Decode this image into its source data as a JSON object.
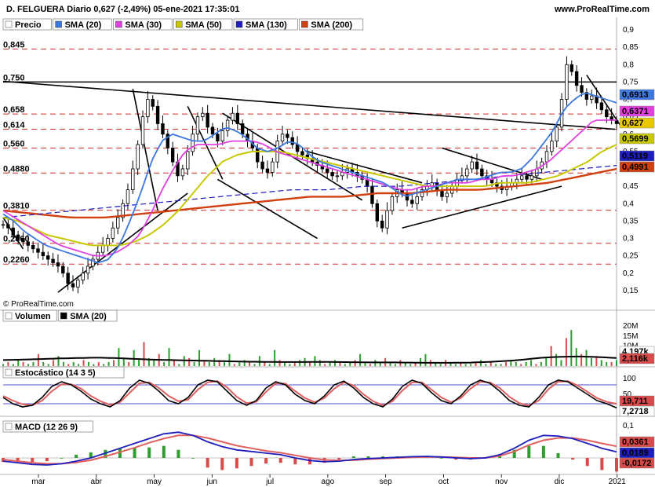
{
  "header": {
    "title": "D. FELGUERA Diario 0,627 (-2,49%) 05-ene-2021 17:35:01",
    "site": "www.ProRealTime.com",
    "copyright": "© ProRealTime.com"
  },
  "colors": {
    "up": "#2e9e2e",
    "down": "#d94a4a",
    "sma20": "#3c78e0",
    "sma30": "#e040e0",
    "sma50": "#c8c800",
    "sma130": "#1e1ebe",
    "sma200": "#d04010",
    "grid_red": "#d03030"
  },
  "chart_data": [
    {
      "type": "candlestick",
      "panel": "price",
      "legend": [
        {
          "label": "Precio",
          "color": "#ffffff"
        },
        {
          "label": "SMA (20)",
          "color": "#3c78e0"
        },
        {
          "label": "SMA (30)",
          "color": "#e040e0"
        },
        {
          "label": "SMA (50)",
          "color": "#c8c800"
        },
        {
          "label": "SMA (130)",
          "color": "#1e1ebe"
        },
        {
          "label": "SMA (200)",
          "color": "#d04010"
        }
      ],
      "ylim": [
        0.1,
        0.9
      ],
      "y_ticks": [
        "0,9",
        "0,85",
        "0,8",
        "0,75",
        "0,7",
        "0,65",
        "0,6",
        "0,55",
        "0,5",
        "0,45",
        "0,4",
        "0,35",
        "0,3",
        "0,25",
        "0,2",
        "0,15"
      ],
      "x_months": [
        "mar",
        "abr",
        "may",
        "jun",
        "jul",
        "ago",
        "sep",
        "oct",
        "nov",
        "dic",
        "2021"
      ],
      "levels": [
        {
          "label": "0,845",
          "value": 0.845
        },
        {
          "label": "0,750",
          "value": 0.75
        },
        {
          "label": "0,658",
          "value": 0.658
        },
        {
          "label": "0,614",
          "value": 0.614
        },
        {
          "label": "0,560",
          "value": 0.56
        },
        {
          "label": "0,4880",
          "value": 0.488
        },
        {
          "label": "0,3810",
          "value": 0.381
        },
        {
          "label": "0,2860",
          "value": 0.286
        },
        {
          "label": "0,2260",
          "value": 0.226
        }
      ],
      "last_values": [
        {
          "label": "0,6913",
          "value": 0.6913,
          "color": "#3c78e0"
        },
        {
          "label": "0,6371",
          "value": 0.6371,
          "color": "#e040e0"
        },
        {
          "label": "0,627",
          "value": 0.627,
          "color": "#e8c800"
        },
        {
          "label": "0,5699",
          "value": 0.5699,
          "color": "#c8c800"
        },
        {
          "label": "0,5119",
          "value": 0.5119,
          "color": "#1e1ebe"
        },
        {
          "label": "0,4991",
          "value": 0.4991,
          "color": "#d04010"
        }
      ],
      "close_series": [
        0.34,
        0.33,
        0.31,
        0.3,
        0.29,
        0.28,
        0.27,
        0.26,
        0.25,
        0.24,
        0.23,
        0.22,
        0.2,
        0.17,
        0.16,
        0.18,
        0.2,
        0.22,
        0.24,
        0.26,
        0.28,
        0.3,
        0.33,
        0.36,
        0.4,
        0.44,
        0.5,
        0.57,
        0.65,
        0.7,
        0.68,
        0.63,
        0.6,
        0.56,
        0.52,
        0.48,
        0.5,
        0.55,
        0.6,
        0.65,
        0.66,
        0.62,
        0.6,
        0.58,
        0.61,
        0.64,
        0.66,
        0.63,
        0.6,
        0.58,
        0.56,
        0.52,
        0.5,
        0.49,
        0.52,
        0.58,
        0.6,
        0.59,
        0.57,
        0.55,
        0.54,
        0.53,
        0.52,
        0.51,
        0.5,
        0.49,
        0.48,
        0.48,
        0.49,
        0.5,
        0.49,
        0.48,
        0.47,
        0.45,
        0.4,
        0.35,
        0.33,
        0.38,
        0.42,
        0.44,
        0.43,
        0.41,
        0.4,
        0.42,
        0.44,
        0.45,
        0.46,
        0.44,
        0.42,
        0.43,
        0.45,
        0.47,
        0.48,
        0.5,
        0.52,
        0.5,
        0.48,
        0.47,
        0.46,
        0.45,
        0.44,
        0.45,
        0.46,
        0.47,
        0.48,
        0.47,
        0.48,
        0.5,
        0.52,
        0.55,
        0.58,
        0.62,
        0.7,
        0.8,
        0.78,
        0.74,
        0.72,
        0.7,
        0.71,
        0.69,
        0.67,
        0.65,
        0.64,
        0.63
      ],
      "sma20_series": [
        0.37,
        0.35,
        0.32,
        0.3,
        0.28,
        0.27,
        0.26,
        0.25,
        0.24,
        0.23,
        0.24,
        0.28,
        0.35,
        0.43,
        0.52,
        0.58,
        0.6,
        0.59,
        0.58,
        0.58,
        0.6,
        0.62,
        0.61,
        0.59,
        0.56,
        0.55,
        0.56,
        0.58,
        0.57,
        0.54,
        0.52,
        0.51,
        0.5,
        0.49,
        0.48,
        0.47,
        0.46,
        0.44,
        0.42,
        0.43,
        0.44,
        0.45,
        0.46,
        0.47,
        0.47,
        0.47,
        0.48,
        0.49,
        0.49,
        0.5,
        0.53,
        0.57,
        0.61,
        0.67,
        0.7,
        0.72,
        0.71,
        0.7,
        0.69
      ],
      "sma30_series": [
        0.38,
        0.36,
        0.34,
        0.32,
        0.3,
        0.28,
        0.27,
        0.26,
        0.25,
        0.25,
        0.26,
        0.28,
        0.31,
        0.37,
        0.44,
        0.5,
        0.55,
        0.57,
        0.57,
        0.57,
        0.58,
        0.58,
        0.58,
        0.57,
        0.55,
        0.54,
        0.53,
        0.52,
        0.51,
        0.5,
        0.49,
        0.48,
        0.47,
        0.46,
        0.45,
        0.44,
        0.44,
        0.45,
        0.45,
        0.46,
        0.46,
        0.46,
        0.47,
        0.47,
        0.48,
        0.48,
        0.49,
        0.5,
        0.52,
        0.55,
        0.58,
        0.61,
        0.64,
        0.64,
        0.64
      ],
      "sma50_series": [
        0.36,
        0.35,
        0.33,
        0.31,
        0.3,
        0.29,
        0.28,
        0.28,
        0.28,
        0.29,
        0.31,
        0.34,
        0.38,
        0.43,
        0.48,
        0.52,
        0.54,
        0.55,
        0.55,
        0.55,
        0.54,
        0.53,
        0.52,
        0.51,
        0.5,
        0.49,
        0.48,
        0.47,
        0.46,
        0.45,
        0.45,
        0.45,
        0.45,
        0.45,
        0.46,
        0.46,
        0.46,
        0.47,
        0.48,
        0.5,
        0.52,
        0.55,
        0.57
      ],
      "sma130_series": [
        0.36,
        0.37,
        0.38,
        0.39,
        0.4,
        0.41,
        0.42,
        0.43,
        0.44,
        0.44,
        0.45,
        0.45,
        0.46,
        0.47,
        0.48,
        0.49,
        0.5,
        0.51
      ],
      "sma200_series": [
        0.38,
        0.37,
        0.36,
        0.36,
        0.37,
        0.38,
        0.39,
        0.4,
        0.41,
        0.42,
        0.42,
        0.43,
        0.43,
        0.44,
        0.44,
        0.45,
        0.46,
        0.48,
        0.5
      ]
    },
    {
      "type": "bar",
      "panel": "volume",
      "legend": [
        {
          "label": "Volumen",
          "color": "#ffffff"
        },
        {
          "label": "SMA (20)",
          "color": "#000000"
        }
      ],
      "y_ticks": [
        "20M",
        "15M",
        "10M",
        "5M"
      ],
      "last_values": [
        {
          "label": "4,197k",
          "color": "#ffffff"
        },
        {
          "label": "2,116k",
          "color": "#d94a4a"
        }
      ],
      "values": [
        1,
        2,
        1,
        3,
        2,
        1,
        2,
        6,
        2,
        1,
        3,
        5,
        2,
        1,
        2,
        1,
        3,
        2,
        1,
        2,
        1,
        2,
        3,
        9,
        4,
        2,
        8,
        3,
        12,
        4,
        3,
        6,
        2,
        9,
        3,
        1,
        5,
        4,
        2,
        8,
        3,
        2,
        4,
        3,
        2,
        6,
        1,
        2,
        3,
        2,
        1,
        5,
        2,
        1,
        8,
        3,
        2,
        1,
        2,
        3,
        4,
        2,
        5,
        3,
        1,
        2,
        3,
        2,
        1,
        2,
        3,
        6,
        2,
        1,
        3,
        2,
        4,
        2,
        1,
        3,
        2,
        1,
        2,
        4,
        6,
        3,
        2,
        1,
        3,
        2,
        1,
        2,
        1,
        1,
        2,
        3,
        1,
        2,
        1,
        1,
        2,
        3,
        2,
        1,
        2,
        3,
        1,
        2,
        4,
        10,
        6,
        3,
        14,
        18,
        9,
        6,
        8,
        4,
        5,
        3,
        2,
        2,
        3
      ],
      "sma_series": [
        3,
        3.2,
        3.5,
        3.8,
        4,
        4.2,
        4,
        3.6,
        3.2,
        3,
        2.8,
        2.6,
        2.4,
        2.2,
        2.1,
        2,
        2,
        2.1,
        2,
        1.9,
        1.8,
        1.8,
        1.7,
        1.6,
        1.6,
        1.7,
        2,
        2.5,
        3.2,
        4.2,
        4.6,
        4.8,
        4.5,
        4
      ]
    },
    {
      "type": "line",
      "panel": "stochastic",
      "legend": [
        {
          "label": "Estocástico (14 3 5)",
          "color": "#ffffff"
        }
      ],
      "y_ticks": [
        "100",
        "50",
        "0"
      ],
      "ylim": [
        0,
        100
      ],
      "last_values": [
        {
          "label": "19,711",
          "color": "#d94a4a"
        },
        {
          "label": "7,2718",
          "color": "#ffffff"
        }
      ],
      "k_series": [
        40,
        20,
        10,
        15,
        40,
        75,
        90,
        80,
        60,
        35,
        20,
        10,
        30,
        70,
        95,
        85,
        60,
        30,
        20,
        40,
        80,
        95,
        90,
        60,
        30,
        15,
        30,
        70,
        90,
        80,
        50,
        30,
        20,
        45,
        80,
        92,
        70,
        40,
        20,
        10,
        35,
        75,
        95,
        85,
        55,
        30,
        20,
        45,
        80,
        95,
        85,
        60,
        30,
        15,
        10,
        40,
        80,
        95,
        90,
        70,
        50,
        30,
        20,
        7
      ],
      "d_series": [
        45,
        30,
        18,
        15,
        30,
        60,
        82,
        82,
        68,
        45,
        28,
        16,
        25,
        55,
        85,
        88,
        70,
        45,
        28,
        33,
        65,
        88,
        92,
        72,
        42,
        22,
        26,
        58,
        85,
        84,
        60,
        38,
        25,
        38,
        68,
        88,
        78,
        50,
        28,
        15,
        28,
        62,
        88,
        88,
        65,
        40,
        25,
        38,
        68,
        90,
        88,
        70,
        42,
        22,
        14,
        30,
        66,
        90,
        92,
        78,
        58,
        38,
        26,
        19.7
      ]
    },
    {
      "type": "line",
      "panel": "macd",
      "legend": [
        {
          "label": "MACD (12 26 9)",
          "color": "#ffffff"
        }
      ],
      "y_ticks": [
        "0,1",
        "0"
      ],
      "last_values": [
        {
          "label": "0,0361",
          "color": "#d94a4a"
        },
        {
          "label": "0,0189",
          "color": "#1e1ebe"
        },
        {
          "label": "-0,0172",
          "color": "#d94a4a"
        }
      ],
      "macd_series": [
        -0.01,
        -0.015,
        -0.02,
        -0.022,
        -0.018,
        -0.01,
        0.0,
        0.015,
        0.03,
        0.045,
        0.06,
        0.075,
        0.08,
        0.07,
        0.05,
        0.035,
        0.025,
        0.02,
        0.015,
        0.01,
        0.0,
        -0.008,
        -0.012,
        -0.01,
        -0.005,
        -0.002,
        0.0,
        0.002,
        0.004,
        0.005,
        0.003,
        0.0,
        -0.002,
        0.0,
        0.01,
        0.03,
        0.055,
        0.07,
        0.068,
        0.06,
        0.045,
        0.03,
        0.019
      ],
      "signal_series": [
        -0.005,
        -0.01,
        -0.015,
        -0.018,
        -0.018,
        -0.014,
        -0.007,
        0.005,
        0.018,
        0.032,
        0.047,
        0.06,
        0.07,
        0.07,
        0.062,
        0.05,
        0.038,
        0.03,
        0.022,
        0.016,
        0.008,
        0.0,
        -0.006,
        -0.008,
        -0.007,
        -0.004,
        -0.002,
        0.0,
        0.002,
        0.003,
        0.003,
        0.002,
        0.0,
        0.0,
        0.006,
        0.02,
        0.04,
        0.055,
        0.062,
        0.062,
        0.055,
        0.045,
        0.036
      ]
    }
  ]
}
